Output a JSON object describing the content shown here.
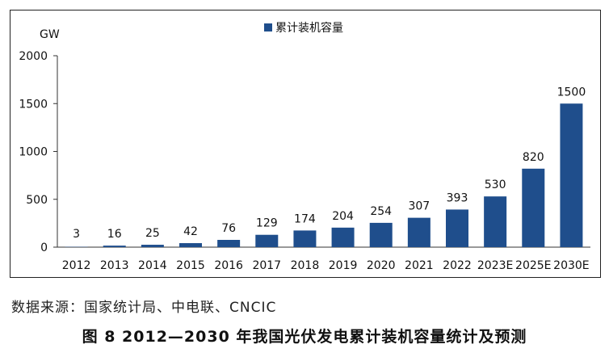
{
  "chart_data": {
    "type": "bar",
    "unit": "GW",
    "legend": "累计装机容量",
    "legend_position": "top-center",
    "categories": [
      "2012",
      "2013",
      "2014",
      "2015",
      "2016",
      "2017",
      "2018",
      "2019",
      "2020",
      "2021",
      "2022",
      "2023E",
      "2025E",
      "2030E"
    ],
    "values": [
      3,
      16,
      25,
      42,
      76,
      129,
      174,
      204,
      254,
      307,
      393,
      530,
      820,
      1500
    ],
    "data_labels": [
      "3",
      "16",
      "25",
      "42",
      "76",
      "129",
      "174",
      "204",
      "254",
      "307",
      "393",
      "530",
      "820",
      "1500"
    ],
    "yticks": [
      "0",
      "500",
      "1000",
      "1500",
      "2000"
    ],
    "ylim": [
      0,
      2000
    ],
    "grid": false,
    "bar_color": "#1f4e8c"
  },
  "source": "数据来源：国家统计局、中电联、CNCIC",
  "caption": "图 8  2012—2030 年我国光伏发电累计装机容量统计及预测"
}
